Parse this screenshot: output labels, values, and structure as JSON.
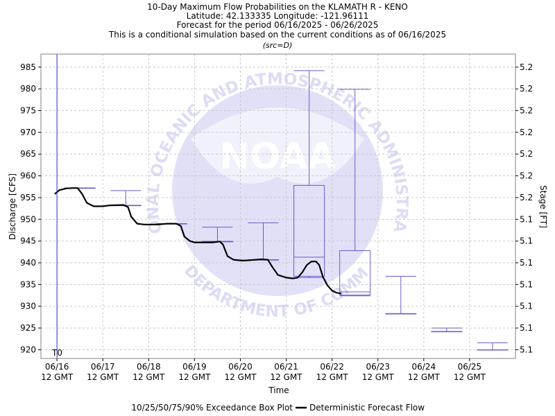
{
  "chart_data": {
    "type": "box+line",
    "title_lines": [
      "10-Day Maximum Flow Probabilities on the KLAMATH R - KENO",
      "Latitude: 42.133335 Longitude: -121.96111",
      "Forecast for the period 06/16/2025 - 06/26/2025",
      "This is a conditional simulation based on the current conditions as of 06/16/2025"
    ],
    "subtitle": "(src=D)",
    "xlabel": "Time",
    "ylabel": "Discharge [CFS]",
    "y2label": "Stage [FT]",
    "ylim": [
      918,
      988
    ],
    "yticks": [
      920,
      925,
      930,
      935,
      940,
      945,
      950,
      955,
      960,
      965,
      970,
      975,
      980,
      985
    ],
    "y2ticks": [
      "5.1",
      "5.1",
      "5.1",
      "5.1",
      "5.1",
      "5.1",
      "5.1",
      "5.2",
      "5.2",
      "5.2",
      "5.2",
      "5.2",
      "5.2",
      "5.2"
    ],
    "xlim_days": [
      -0.35,
      10.0
    ],
    "xticks": [
      {
        "label1": "06/16",
        "label2": "12 GMT"
      },
      {
        "label1": "06/17",
        "label2": "12 GMT"
      },
      {
        "label1": "06/18",
        "label2": "12 GMT"
      },
      {
        "label1": "06/19",
        "label2": "12 GMT"
      },
      {
        "label1": "06/20",
        "label2": "12 GMT"
      },
      {
        "label1": "06/21",
        "label2": "12 GMT"
      },
      {
        "label1": "06/22",
        "label2": "12 GMT"
      },
      {
        "label1": "06/23",
        "label2": "12 GMT"
      },
      {
        "label1": "06/24",
        "label2": "12 GMT"
      },
      {
        "label1": "06/25",
        "label2": "12 GMT"
      }
    ],
    "t0_label": "T0",
    "grid": true,
    "watermark": {
      "text_top": "NATIONAL OCEANIC AND ATMOSPHERIC ADMINISTRATION",
      "text_bottom": "U.S. DEPARTMENT OF COMMERCE",
      "logo_text": "NOAA"
    },
    "boxes": [
      {
        "day": 0,
        "p10": 957.2,
        "p25": 957.2,
        "p50": 957.2,
        "p75": 957.2,
        "p90": 957.2
      },
      {
        "day": 1,
        "p10": 953.2,
        "p25": 953.2,
        "p50": 953.2,
        "p75": 953.2,
        "p90": 956.6
      },
      {
        "day": 2,
        "p10": 949.0,
        "p25": 949.0,
        "p50": 949.0,
        "p75": 949.0,
        "p90": 949.0
      },
      {
        "day": 3,
        "p10": 944.9,
        "p25": 944.9,
        "p50": 944.9,
        "p75": 944.9,
        "p90": 948.2
      },
      {
        "day": 4,
        "p10": 940.7,
        "p25": 940.7,
        "p50": 940.7,
        "p75": 940.7,
        "p90": 949.2
      },
      {
        "day": 5,
        "p10": 936.6,
        "p25": 936.9,
        "p50": 941.3,
        "p75": 957.8,
        "p90": 984.2
      },
      {
        "day": 6,
        "p10": 932.4,
        "p25": 932.6,
        "p50": 933.3,
        "p75": 942.8,
        "p90": 979.9
      },
      {
        "day": 7,
        "p10": 928.3,
        "p25": 928.3,
        "p50": 928.3,
        "p75": 928.3,
        "p90": 936.9
      },
      {
        "day": 8,
        "p10": 924.2,
        "p25": 924.2,
        "p50": 924.2,
        "p75": 924.2,
        "p90": 925.0
      },
      {
        "day": 9,
        "p10": 920.0,
        "p25": 920.0,
        "p50": 920.0,
        "p75": 920.0,
        "p90": 921.6
      }
    ],
    "deterministic": [
      [
        -0.05,
        955.8
      ],
      [
        0.05,
        956.7
      ],
      [
        0.2,
        957.1
      ],
      [
        0.35,
        957.2
      ],
      [
        0.45,
        957.2
      ],
      [
        0.55,
        955.8
      ],
      [
        0.65,
        953.8
      ],
      [
        0.8,
        953.0
      ],
      [
        1.0,
        953.0
      ],
      [
        1.15,
        953.2
      ],
      [
        1.45,
        953.3
      ],
      [
        1.55,
        952.8
      ],
      [
        1.62,
        950.6
      ],
      [
        1.75,
        949.0
      ],
      [
        1.9,
        948.8
      ],
      [
        2.2,
        948.8
      ],
      [
        2.4,
        949.0
      ],
      [
        2.6,
        949.0
      ],
      [
        2.7,
        948.5
      ],
      [
        2.78,
        946.0
      ],
      [
        2.9,
        945.0
      ],
      [
        3.0,
        944.7
      ],
      [
        3.4,
        944.7
      ],
      [
        3.55,
        944.9
      ],
      [
        3.62,
        944.2
      ],
      [
        3.72,
        941.5
      ],
      [
        3.85,
        940.7
      ],
      [
        4.05,
        940.5
      ],
      [
        4.2,
        940.6
      ],
      [
        4.45,
        940.8
      ],
      [
        4.6,
        940.7
      ],
      [
        4.7,
        939.0
      ],
      [
        4.82,
        937.2
      ],
      [
        5.0,
        936.6
      ],
      [
        5.15,
        936.4
      ],
      [
        5.25,
        936.6
      ],
      [
        5.35,
        937.8
      ],
      [
        5.45,
        939.5
      ],
      [
        5.55,
        940.3
      ],
      [
        5.65,
        940.3
      ],
      [
        5.72,
        939.5
      ],
      [
        5.8,
        936.8
      ],
      [
        5.9,
        934.8
      ],
      [
        6.0,
        933.6
      ],
      [
        6.1,
        933.1
      ],
      [
        6.2,
        932.9
      ]
    ]
  },
  "legend": {
    "box_label": "10/25/50/75/90% Exceedance Box Plot",
    "line_label": "Deterministic Forecast Flow"
  },
  "colors": {
    "box": "#6a5acd",
    "line": "#000000",
    "t0": "#2b2bd6",
    "grid": "#c8c8c8",
    "frame": "#808080",
    "watermark": "#5b57d6"
  }
}
